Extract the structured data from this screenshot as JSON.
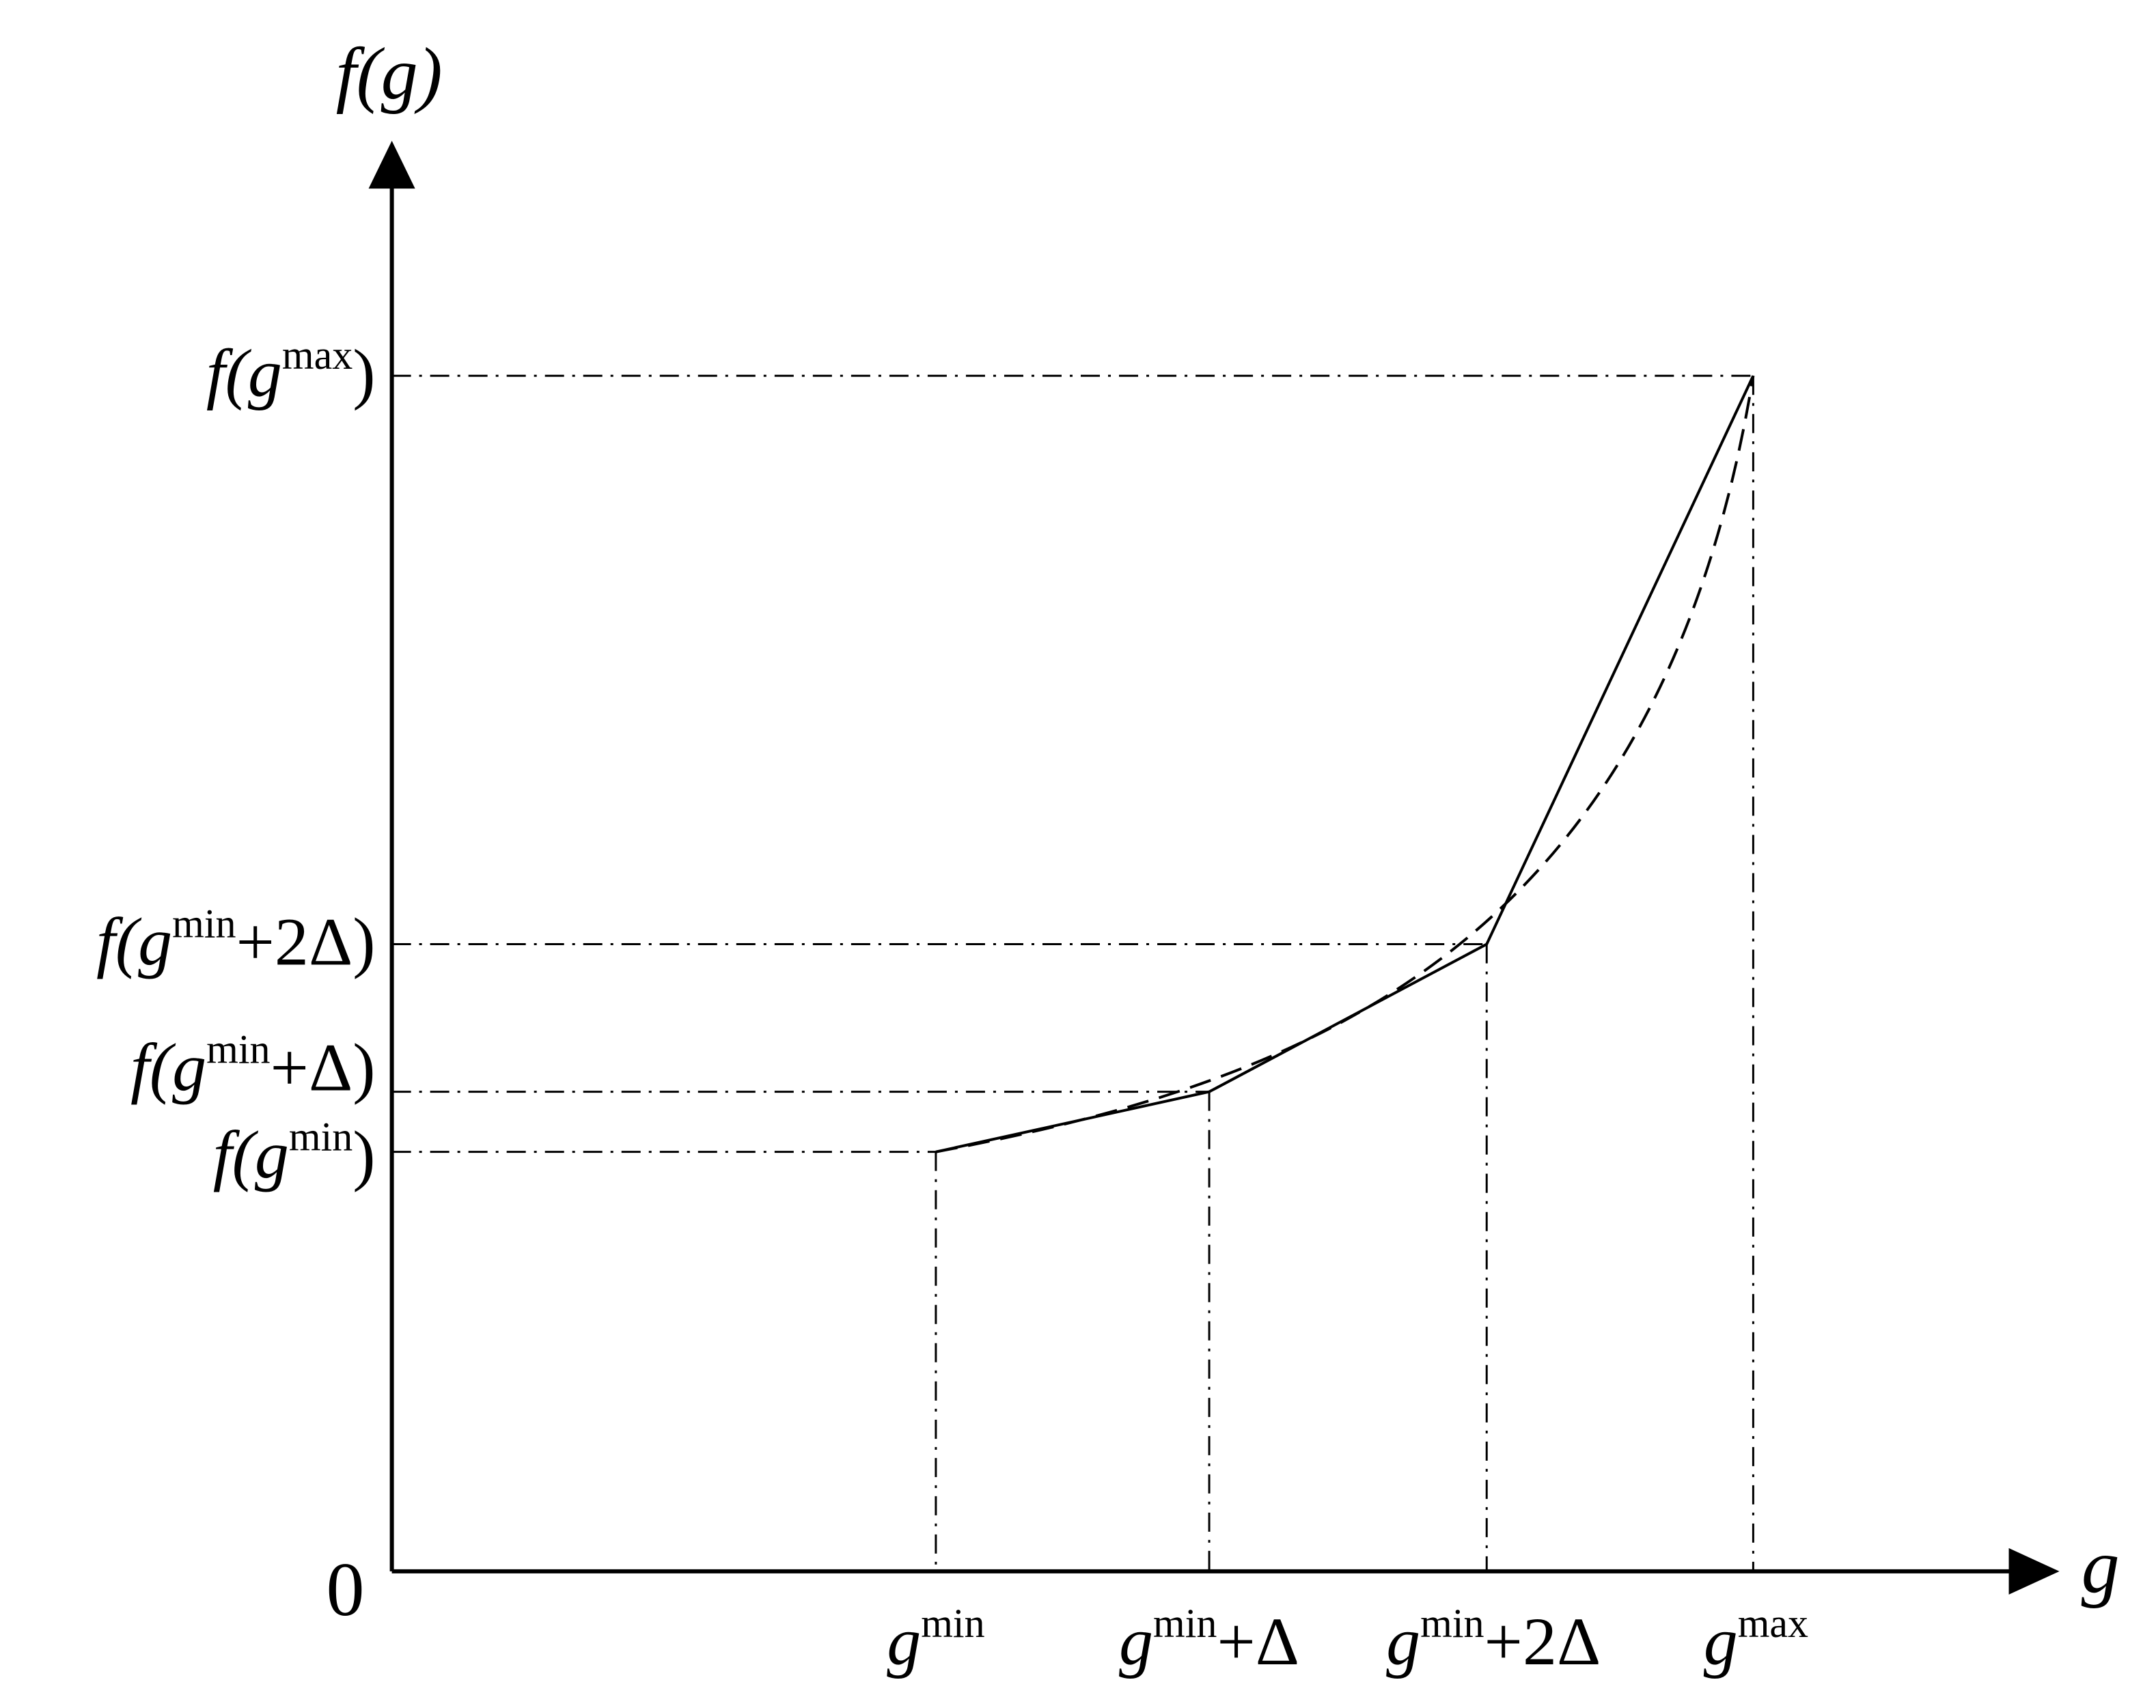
{
  "axes": {
    "y_label": "f(g)",
    "x_label": "g",
    "origin": "0"
  },
  "y_labels": [
    {
      "pre": "f(g",
      "sup": "max",
      "post": ")"
    },
    {
      "pre": "f(g",
      "sup": "min",
      "post": "+2Δ)"
    },
    {
      "pre": "f(g",
      "sup": "min",
      "post": "+Δ)"
    },
    {
      "pre": "f(g",
      "sup": "min",
      "post": ")"
    }
  ],
  "x_labels": [
    {
      "pre": "g",
      "sup": "min"
    },
    {
      "pre": "g",
      "sup": "min",
      "post": "+Δ"
    },
    {
      "pre": "g",
      "sup": "min",
      "post": "+2Δ"
    },
    {
      "pre": "g",
      "sup": "max"
    }
  ]
}
